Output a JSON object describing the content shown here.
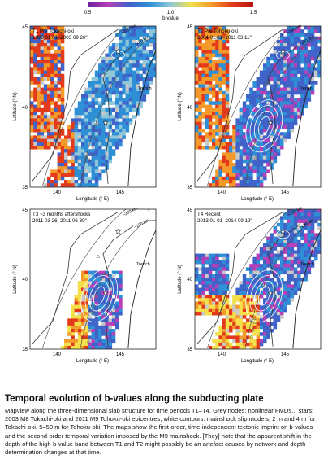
{
  "colorbar": {
    "label": "b-value",
    "ticks": [
      "0.5",
      "1.0",
      "1.5"
    ],
    "stops": [
      "#6a1fa0",
      "#b83fb8",
      "#3f63c9",
      "#2f8fd6",
      "#8fc7d9",
      "#f3e04a",
      "#f39a2a",
      "#e23a1a",
      "#b8140f"
    ]
  },
  "panels": [
    {
      "id": "T1",
      "title": "T1 Pre Tokachi-oki",
      "period": "1998 01 01–2003 09 26″",
      "depth_labels": [
        "~200 km",
        "~100 km"
      ],
      "trench_label": "Trench",
      "x_ticks": [
        "140",
        "145"
      ],
      "y_ticks": [
        "45",
        "40",
        "35"
      ],
      "xlabel": "Longitude (° E)",
      "ylabel": "Latitude (° N)"
    },
    {
      "id": "T2",
      "title": "T2 Pre Tohoku-oki",
      "period": "2004 01 01–2011 03 11″",
      "depth_labels": [
        "~200 km",
        "~100 km"
      ],
      "trench_label": "Trench",
      "x_ticks": [
        "140",
        "145"
      ],
      "y_ticks": [
        "45",
        "40",
        "35"
      ],
      "xlabel": "Longitude (° E)",
      "ylabel": "Latitude (° N)"
    },
    {
      "id": "T3",
      "title": "T3 ~3 months aftershocks",
      "period": "2011 03 26–2011 06 30″",
      "depth_labels": [
        "~200 km",
        "~100 km"
      ],
      "trench_label": "Trench",
      "x_ticks": [
        "140",
        "145"
      ],
      "y_ticks": [
        "45",
        "40",
        "35"
      ],
      "xlabel": "Longitude (° E)",
      "ylabel": "Latitude (° N)"
    },
    {
      "id": "T4",
      "title": "T4 Recent",
      "period": "2013 01 01–2014 09 12″",
      "depth_labels": [
        "~200 km",
        "~100 km"
      ],
      "trench_label": "Trench",
      "x_ticks": [
        "140",
        "145"
      ],
      "y_ticks": [
        "45",
        "40",
        "35"
      ],
      "xlabel": "Longitude (° E)",
      "ylabel": "Latitude (° N)"
    }
  ],
  "caption": {
    "title": "Temporal evolution of b-values along the subducting plate",
    "text": "Mapview along the three-dimensional slab structure for time periods T1–T4. Grey nodes: nonlinear FMDs.., stars: 2003 M8 Tokachi-oki and 2011 M9 Tohoku-oki epicentres, white contours: mainshock slip models, 2 m and 4 m for Tokachi-oki, 5–50 m for Tohoku-oki. The maps show the first-order, time-independent tectonic imprint on b-values and the second-order temporal variation imposed by the M9 mainshock. [They] note that the apparent shift in the depth of the high-b-value band between T1 and T2 might possibly be an artefact caused by network and depth determination changes at that time."
  }
}
